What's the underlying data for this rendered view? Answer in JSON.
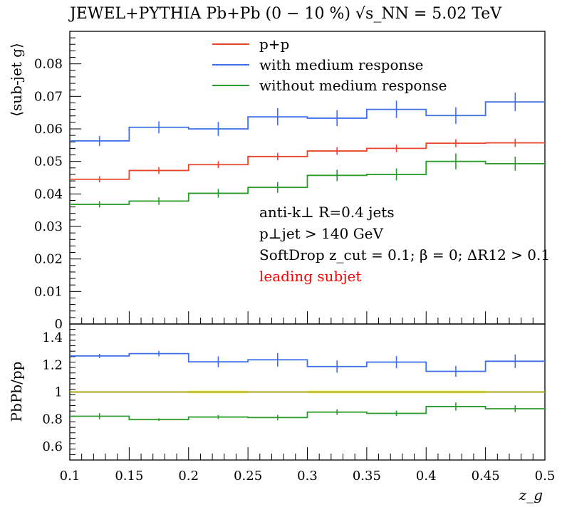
{
  "title": "JEWEL+PYTHIA Pb+Pb (0 − 10 %) √s_NN = 5.02 TeV",
  "chart_data": [
    {
      "type": "line",
      "panel": "main",
      "ylabel": "⟨sub-jet g⟩",
      "ylim": [
        0,
        0.09
      ],
      "yticks": [
        "0",
        "0.01",
        "0.02",
        "0.03",
        "0.04",
        "0.05",
        "0.06",
        "0.07",
        "0.08"
      ],
      "bin_edges": [
        0.1,
        0.15,
        0.2,
        0.25,
        0.3,
        0.35,
        0.4,
        0.45,
        0.5
      ],
      "legend_position": "top-center",
      "annotations": [
        "anti-k⊥ R=0.4 jets",
        "p⊥jet > 140 GeV",
        "SoftDrop z_cut = 0.1; β = 0; ΔR12 > 0.1",
        "leading subjet"
      ],
      "annotation_colors": [
        "#000000",
        "#000000",
        "#000000",
        "#ff0000"
      ],
      "series": [
        {
          "name": "p+p",
          "color": "#e8452a",
          "values": [
            0.0445,
            0.0472,
            0.049,
            0.0515,
            0.0532,
            0.054,
            0.0556,
            0.0557
          ],
          "errors": [
            0.0003,
            0.0004,
            0.0004,
            0.0005,
            0.0005,
            0.0005,
            0.0006,
            0.0006
          ]
        },
        {
          "name": "with medium response",
          "color": "#3f6fe8",
          "values": [
            0.0563,
            0.0605,
            0.06,
            0.0637,
            0.0633,
            0.066,
            0.0641,
            0.0683
          ],
          "errors": [
            0.0009,
            0.0012,
            0.0015,
            0.002,
            0.0018,
            0.002,
            0.0019,
            0.0022
          ]
        },
        {
          "name": "without medium response",
          "color": "#2a9a2a",
          "values": [
            0.0368,
            0.0378,
            0.0402,
            0.042,
            0.0457,
            0.046,
            0.05,
            0.0493
          ],
          "errors": [
            0.0003,
            0.0005,
            0.0007,
            0.001,
            0.0011,
            0.0012,
            0.0018,
            0.0015
          ]
        }
      ]
    },
    {
      "type": "line",
      "panel": "ratio",
      "ylabel": "PbPb/pp",
      "xlabel": "z_g",
      "ylim": [
        0.5,
        1.5
      ],
      "yticks": [
        "0.6",
        "0.8",
        "1",
        "1.2",
        "1.4"
      ],
      "xticks": [
        "0.1",
        "0.15",
        "0.2",
        "0.25",
        "0.3",
        "0.35",
        "0.4",
        "0.45",
        "0.5"
      ],
      "xlim": [
        0.1,
        0.5
      ],
      "bin_edges": [
        0.1,
        0.15,
        0.2,
        0.25,
        0.3,
        0.35,
        0.4,
        0.45,
        0.5
      ],
      "reference_band_color": "#f2ea00",
      "series": [
        {
          "name": "with medium response",
          "color": "#3f6fe8",
          "values": [
            1.265,
            1.282,
            1.222,
            1.237,
            1.187,
            1.22,
            1.152,
            1.226
          ],
          "errors": [
            0.015,
            0.02,
            0.04,
            0.05,
            0.045,
            0.045,
            0.04,
            0.05
          ]
        },
        {
          "name": "without medium response",
          "color": "#2a9a2a",
          "values": [
            0.822,
            0.797,
            0.816,
            0.812,
            0.852,
            0.843,
            0.893,
            0.877
          ],
          "errors": [
            0.007,
            0.01,
            0.015,
            0.02,
            0.02,
            0.02,
            0.03,
            0.025
          ]
        }
      ]
    }
  ]
}
